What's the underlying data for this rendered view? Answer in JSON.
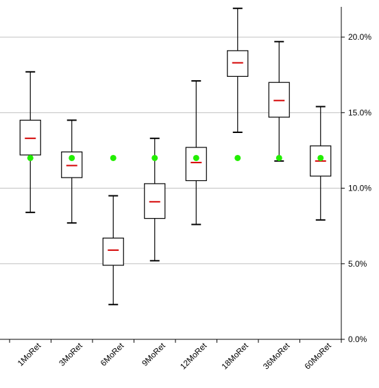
{
  "chart_data": {
    "type": "box",
    "categories": [
      "1MoRet",
      "3MoRet",
      "6MoRet",
      "9MoRet",
      "12MoRet",
      "18MoRet",
      "36MoRet",
      "60MoRet"
    ],
    "boxes": [
      {
        "whisker_low": 8.4,
        "q1": 12.2,
        "median": 13.3,
        "q3": 14.5,
        "whisker_high": 17.7,
        "marker": 12.0
      },
      {
        "whisker_low": 7.7,
        "q1": 10.7,
        "median": 11.5,
        "q3": 12.4,
        "whisker_high": 14.5,
        "marker": 12.0
      },
      {
        "whisker_low": 2.3,
        "q1": 4.9,
        "median": 5.9,
        "q3": 6.7,
        "whisker_high": 9.5,
        "marker": 12.0
      },
      {
        "whisker_low": 5.2,
        "q1": 8.0,
        "median": 9.1,
        "q3": 10.3,
        "whisker_high": 13.3,
        "marker": 12.0
      },
      {
        "whisker_low": 7.6,
        "q1": 10.5,
        "median": 11.7,
        "q3": 12.7,
        "whisker_high": 17.1,
        "marker": 12.0
      },
      {
        "whisker_low": 13.7,
        "q1": 17.4,
        "median": 18.3,
        "q3": 19.1,
        "whisker_high": 21.9,
        "marker": 12.0
      },
      {
        "whisker_low": 11.8,
        "q1": 14.7,
        "median": 15.8,
        "q3": 17.0,
        "whisker_high": 19.7,
        "marker": 12.0
      },
      {
        "whisker_low": 7.9,
        "q1": 10.8,
        "median": 11.8,
        "q3": 12.8,
        "whisker_high": 15.4,
        "marker": 12.0
      }
    ],
    "y_ticks": [
      "0.0%",
      "5.0%",
      "10.0%",
      "15.0%",
      "20.0%"
    ],
    "y_tick_values": [
      0,
      5,
      10,
      15,
      20
    ],
    "ylim": [
      0,
      22
    ],
    "y_axis_side": "right",
    "grid": "horizontal",
    "title": "",
    "xlabel": "",
    "ylabel": "",
    "colors": {
      "box": "#000000",
      "median": "#d40000",
      "marker": "#22ee00",
      "grid": "#c0c0c0",
      "axis": "#000000"
    }
  }
}
